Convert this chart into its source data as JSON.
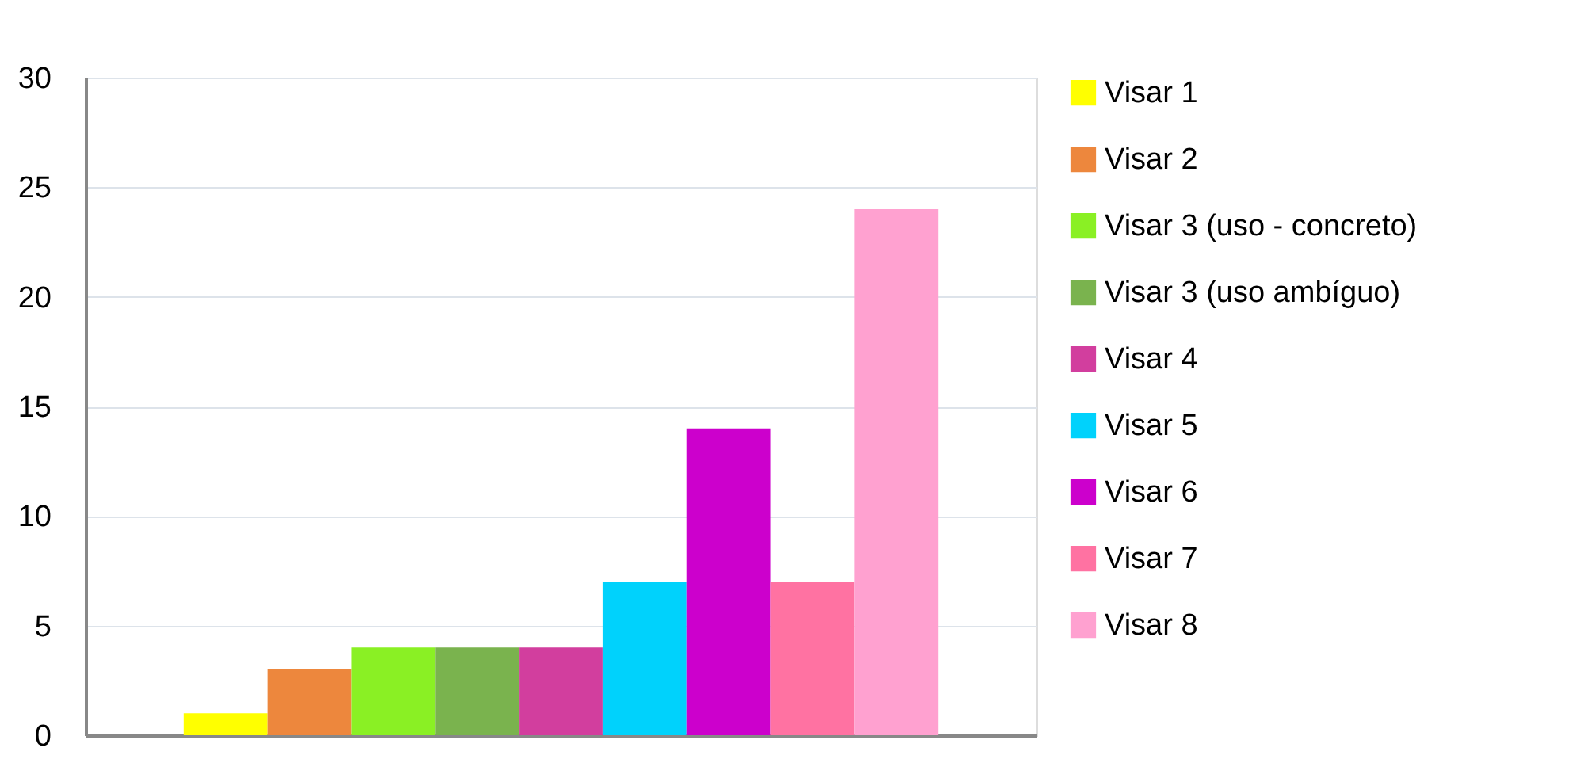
{
  "chart_data": {
    "type": "bar",
    "categories": [
      null
    ],
    "series": [
      {
        "name": "Visar 1",
        "color": "#ffff00",
        "values": [
          1
        ]
      },
      {
        "name": "Visar 2",
        "color": "#ed873d",
        "values": [
          3
        ]
      },
      {
        "name": "Visar 3  (uso - concreto)",
        "color": "#8af024",
        "values": [
          4
        ]
      },
      {
        "name": "Visar 3  (uso ambíguo)",
        "color": "#7ab34e",
        "values": [
          4
        ]
      },
      {
        "name": "Visar 4",
        "color": "#d23e9e",
        "values": [
          4
        ]
      },
      {
        "name": "Visar 5",
        "color": "#00d2fc",
        "values": [
          7
        ]
      },
      {
        "name": "Visar 6",
        "color": "#cc00cc",
        "values": [
          14
        ]
      },
      {
        "name": "Visar 7",
        "color": "#ff72a2",
        "values": [
          7
        ]
      },
      {
        "name": "Visar 8",
        "color": "#ffa1d0",
        "values": [
          24
        ]
      }
    ],
    "ylim": [
      0,
      30
    ],
    "yticks": [
      0,
      5,
      10,
      15,
      20,
      25,
      30
    ],
    "grid": "y",
    "legend": "right",
    "tick_labels": "y"
  }
}
